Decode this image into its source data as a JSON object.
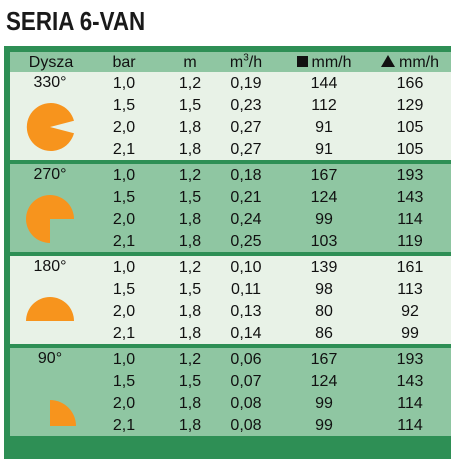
{
  "title": "SERIA 6-VAN",
  "colors": {
    "frame": "#2e8f55",
    "light_band": "#e8f2e7",
    "dark_band": "#8fc6a2",
    "shape_orange": "#f7941d"
  },
  "headers": {
    "nozzle": "Dysza",
    "bar": "bar",
    "m": "m",
    "flow_base": "m",
    "flow_sup": "3",
    "flow_suffix": "/h",
    "square": "mm/h",
    "triangle": "mm/h"
  },
  "sections": [
    {
      "angle": "330°",
      "shape": "pie-330",
      "rows": [
        {
          "bar": "1,0",
          "m": "1,2",
          "flow": "0,19",
          "sq": "144",
          "tri": "166"
        },
        {
          "bar": "1,5",
          "m": "1,5",
          "flow": "0,23",
          "sq": "112",
          "tri": "129"
        },
        {
          "bar": "2,0",
          "m": "1,8",
          "flow": "0,27",
          "sq": "91",
          "tri": "105"
        },
        {
          "bar": "2,1",
          "m": "1,8",
          "flow": "0,27",
          "sq": "91",
          "tri": "105"
        }
      ]
    },
    {
      "angle": "270°",
      "shape": "pie-270",
      "rows": [
        {
          "bar": "1,0",
          "m": "1,2",
          "flow": "0,18",
          "sq": "167",
          "tri": "193"
        },
        {
          "bar": "1,5",
          "m": "1,5",
          "flow": "0,21",
          "sq": "124",
          "tri": "143"
        },
        {
          "bar": "2,0",
          "m": "1,8",
          "flow": "0,24",
          "sq": "99",
          "tri": "114"
        },
        {
          "bar": "2,1",
          "m": "1,8",
          "flow": "0,25",
          "sq": "103",
          "tri": "119"
        }
      ]
    },
    {
      "angle": "180°",
      "shape": "pie-180",
      "rows": [
        {
          "bar": "1,0",
          "m": "1,2",
          "flow": "0,10",
          "sq": "139",
          "tri": "161"
        },
        {
          "bar": "1,5",
          "m": "1,5",
          "flow": "0,11",
          "sq": "98",
          "tri": "113"
        },
        {
          "bar": "2,0",
          "m": "1,8",
          "flow": "0,13",
          "sq": "80",
          "tri": "92"
        },
        {
          "bar": "2,1",
          "m": "1,8",
          "flow": "0,14",
          "sq": "86",
          "tri": "99"
        }
      ]
    },
    {
      "angle": "90°",
      "shape": "pie-90",
      "rows": [
        {
          "bar": "1,0",
          "m": "1,2",
          "flow": "0,06",
          "sq": "167",
          "tri": "193"
        },
        {
          "bar": "1,5",
          "m": "1,5",
          "flow": "0,07",
          "sq": "124",
          "tri": "143"
        },
        {
          "bar": "2,0",
          "m": "1,8",
          "flow": "0,08",
          "sq": "99",
          "tri": "114"
        },
        {
          "bar": "2,1",
          "m": "1,8",
          "flow": "0,08",
          "sq": "99",
          "tri": "114"
        }
      ]
    }
  ]
}
